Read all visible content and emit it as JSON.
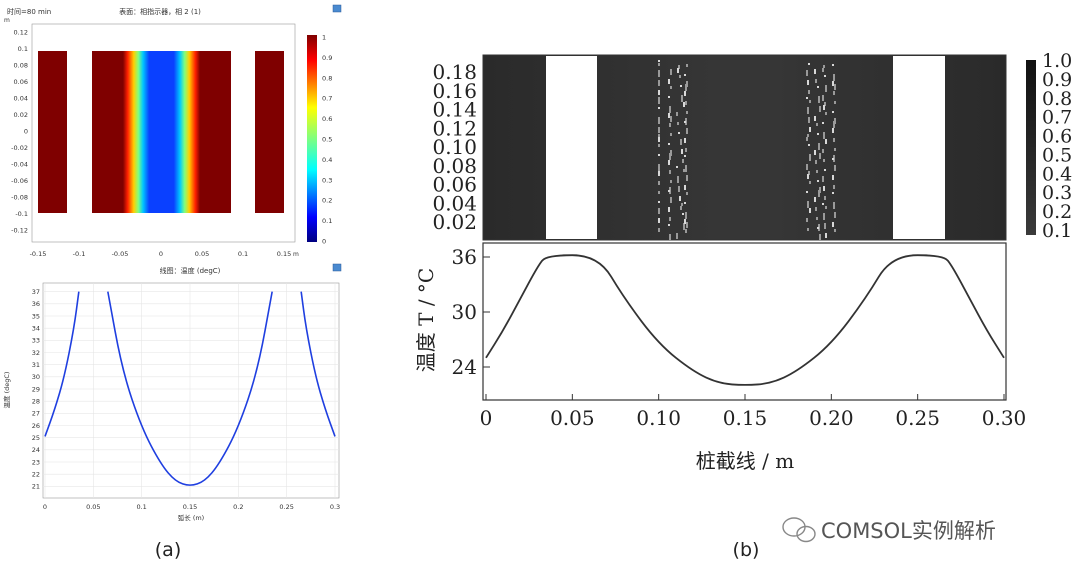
{
  "panel_a": {
    "caption": "(a)",
    "top": {
      "header_left": "时间=80 min",
      "header_center": "表面：相指示器，相 2 (1)",
      "yunit": "m",
      "xunit": "m",
      "colorbar_ticks": [
        "1",
        "0.9",
        "0.8",
        "0.7",
        "0.6",
        "0.5",
        "0.4",
        "0.3",
        "0.2",
        "0.1",
        "0"
      ],
      "yticks": [
        "0.12",
        "0.1",
        "0.08",
        "0.06",
        "0.04",
        "0.02",
        "0",
        "-0.02",
        "-0.04",
        "-0.06",
        "-0.08",
        "-0.1",
        "-0.12"
      ],
      "xticks": [
        "-0.15",
        "-0.1",
        "-0.05",
        "0",
        "0.05",
        "0.1",
        "0.15"
      ],
      "colors": {
        "solid": "#7f0000",
        "mid": "#0a2dff"
      }
    },
    "bottom": {
      "title": "线图：温度 (degC)",
      "ylabel": "温度 (degC)",
      "xlabel": "弧长 (m)",
      "yticks": [
        "37",
        "36",
        "35",
        "34",
        "33",
        "32",
        "31",
        "30",
        "29",
        "28",
        "27",
        "26",
        "25",
        "24",
        "23",
        "22",
        "21"
      ],
      "xticks": [
        "0",
        "0.05",
        "0.1",
        "0.15",
        "0.2",
        "0.25",
        "0.3"
      ],
      "line_color": "#1f3fe0"
    }
  },
  "panel_b": {
    "caption": "(b)",
    "top": {
      "yticks": [
        "0.18",
        "0.16",
        "0.14",
        "0.12",
        "0.10",
        "0.08",
        "0.06",
        "0.04",
        "0.02"
      ],
      "colorbar_ticks": [
        "1.0",
        "0.9",
        "0.8",
        "0.7",
        "0.6",
        "0.5",
        "0.4",
        "0.3",
        "0.2",
        "0.1"
      ]
    },
    "bottom": {
      "ylabel": "温度 T / °C",
      "xlabel": "桩截线 / m",
      "yticks": [
        "36",
        "30",
        "24"
      ],
      "xticks": [
        "0",
        "0.05",
        "0.10",
        "0.15",
        "0.20",
        "0.25",
        "0.30"
      ]
    }
  },
  "watermark": "COMSOL实例解析",
  "chart_data": [
    {
      "type": "heatmap",
      "title": "表面：相指示器，相 2 (1)",
      "xlabel": "m",
      "ylabel": "m",
      "xlim": [
        -0.17,
        0.14
      ],
      "ylim": [
        -0.13,
        0.13
      ],
      "colorbar_range": [
        0,
        1
      ],
      "solid_blocks_x": [
        [
          -0.165,
          -0.135
        ],
        [
          -0.075,
          -0.04
        ],
        [
          0.04,
          0.08
        ],
        [
          0.1,
          0.13
        ]
      ],
      "gradient_band_x": [
        -0.04,
        0.04
      ],
      "block_y": [
        -0.1,
        0.1
      ]
    },
    {
      "type": "line",
      "title": "线图：温度 (degC)",
      "xlabel": "弧长 (m)",
      "ylabel": "温度 (degC)",
      "xlim": [
        0,
        0.3
      ],
      "ylim": [
        20.7,
        37.3
      ],
      "series": [
        {
          "x": [
            0,
            0.01,
            0.02,
            0.03,
            0.035
          ],
          "y": [
            25.1,
            27.3,
            30.0,
            34.0,
            37.0
          ]
        },
        {
          "x": [
            0.065,
            0.08,
            0.1,
            0.12,
            0.135,
            0.15,
            0.165,
            0.18,
            0.2,
            0.22,
            0.235
          ],
          "y": [
            37.0,
            30.5,
            25.8,
            22.8,
            21.4,
            21.0,
            21.4,
            22.8,
            25.8,
            30.5,
            37.0
          ]
        },
        {
          "x": [
            0.265,
            0.27,
            0.28,
            0.29,
            0.3
          ],
          "y": [
            37.0,
            34.0,
            30.0,
            27.3,
            25.1
          ]
        }
      ]
    },
    {
      "type": "heatmap",
      "xlim": [
        0,
        0.3
      ],
      "ylim": [
        0,
        0.19
      ],
      "colorbar_range": [
        0.1,
        1.0
      ],
      "white_gaps_x": [
        [
          0.035,
          0.065
        ],
        [
          0.235,
          0.265
        ]
      ]
    },
    {
      "type": "line",
      "xlabel": "桩截线 / m",
      "ylabel": "温度 T / °C",
      "xlim": [
        0,
        0.3
      ],
      "ylim": [
        20.5,
        37.0
      ],
      "series": [
        {
          "x": [
            0,
            0.01,
            0.02,
            0.03,
            0.035,
            0.065,
            0.08,
            0.1,
            0.12,
            0.135,
            0.15,
            0.165,
            0.18,
            0.2,
            0.22,
            0.235,
            0.265,
            0.27,
            0.28,
            0.29,
            0.3
          ],
          "y": [
            25.0,
            28.0,
            31.5,
            35.0,
            36.2,
            36.2,
            31.5,
            26.5,
            23.5,
            22.2,
            22.0,
            22.2,
            23.5,
            26.5,
            31.5,
            36.2,
            36.2,
            35.0,
            31.5,
            28.0,
            25.0
          ]
        }
      ]
    }
  ]
}
